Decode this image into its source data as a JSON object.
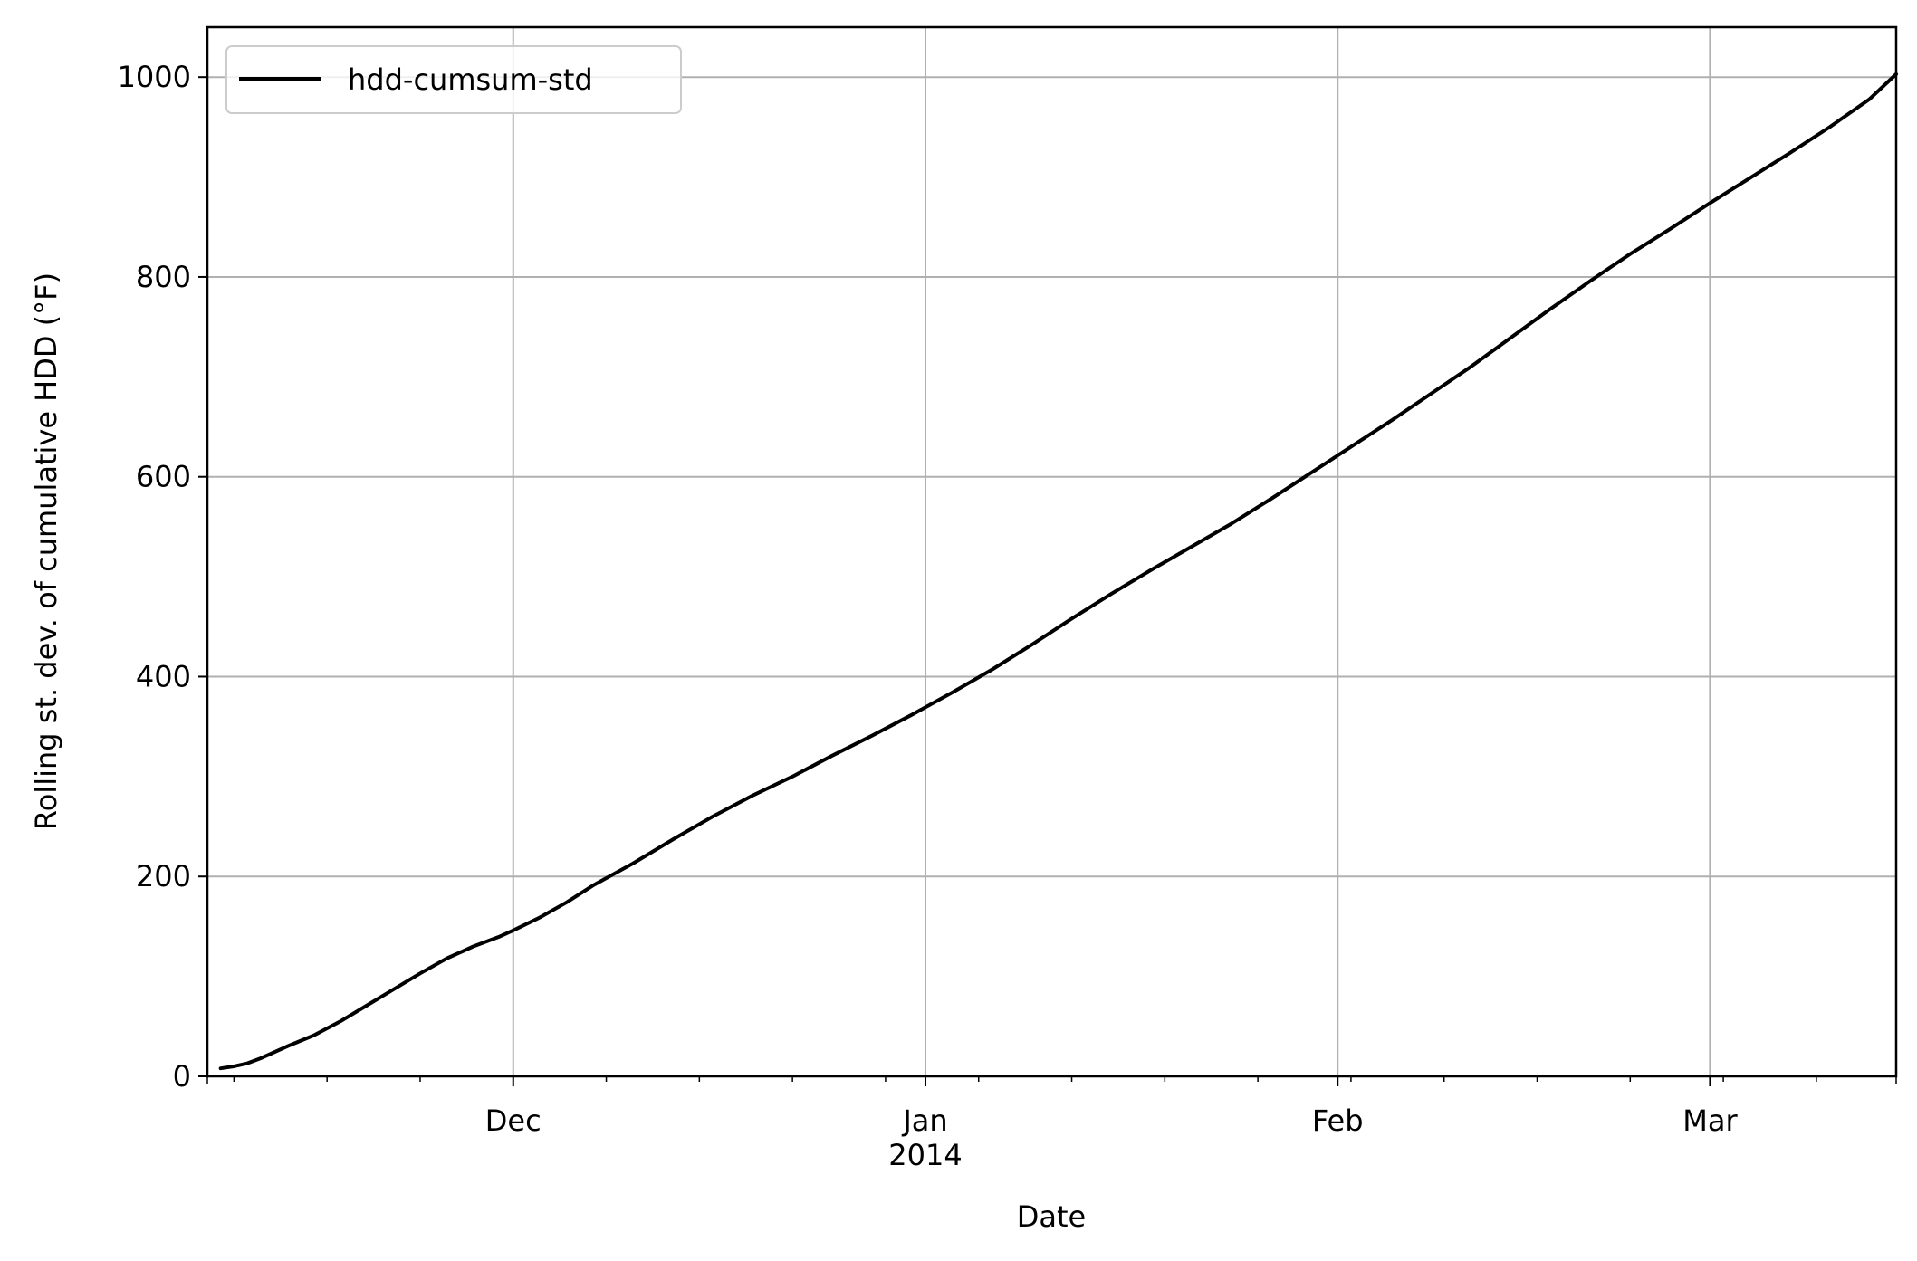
{
  "chart_data": {
    "type": "line",
    "title": "",
    "xlabel": "Date",
    "ylabel": "Rolling st. dev. of cumulative HDD ($^\\circ$F)",
    "ylabel_display": "Rolling st. dev. of cumulative HDD (°F)",
    "xlim": [
      "2013-11-08",
      "2014-03-15"
    ],
    "ylim": [
      0,
      1050
    ],
    "grid": true,
    "legend_position": "upper-left",
    "x_ticks": [
      {
        "date": "2013-12-01",
        "label": "Dec",
        "sublabel": ""
      },
      {
        "date": "2014-01-01",
        "label": "Jan",
        "sublabel": "2014"
      },
      {
        "date": "2014-02-01",
        "label": "Feb",
        "sublabel": ""
      },
      {
        "date": "2014-03-01",
        "label": "Mar",
        "sublabel": ""
      }
    ],
    "y_ticks": [
      0,
      200,
      400,
      600,
      800,
      1000
    ],
    "series": [
      {
        "name": "hdd-cumsum-std",
        "color": "#000000",
        "x": [
          "2013-11-09",
          "2013-11-10",
          "2013-11-11",
          "2013-11-12",
          "2013-11-14",
          "2013-11-16",
          "2013-11-18",
          "2013-11-20",
          "2013-11-22",
          "2013-11-24",
          "2013-11-26",
          "2013-11-28",
          "2013-11-30",
          "2013-12-01",
          "2013-12-03",
          "2013-12-05",
          "2013-12-07",
          "2013-12-10",
          "2013-12-13",
          "2013-12-16",
          "2013-12-19",
          "2013-12-22",
          "2013-12-25",
          "2013-12-28",
          "2013-12-31",
          "2014-01-03",
          "2014-01-06",
          "2014-01-09",
          "2014-01-12",
          "2014-01-15",
          "2014-01-18",
          "2014-01-21",
          "2014-01-24",
          "2014-01-27",
          "2014-01-30",
          "2014-02-02",
          "2014-02-05",
          "2014-02-08",
          "2014-02-11",
          "2014-02-14",
          "2014-02-17",
          "2014-02-20",
          "2014-02-23",
          "2014-02-26",
          "2014-03-01",
          "2014-03-04",
          "2014-03-07",
          "2014-03-10",
          "2014-03-13",
          "2014-03-15"
        ],
        "values": [
          8,
          10,
          13,
          18,
          30,
          41,
          55,
          71,
          87,
          103,
          118,
          130,
          140,
          146,
          159,
          174,
          191,
          213,
          237,
          260,
          281,
          300,
          321,
          341,
          362,
          384,
          407,
          432,
          458,
          483,
          507,
          530,
          553,
          578,
          604,
          630,
          656,
          683,
          710,
          739,
          768,
          796,
          823,
          848,
          874,
          899,
          924,
          950,
          978,
          1003
        ]
      }
    ]
  }
}
